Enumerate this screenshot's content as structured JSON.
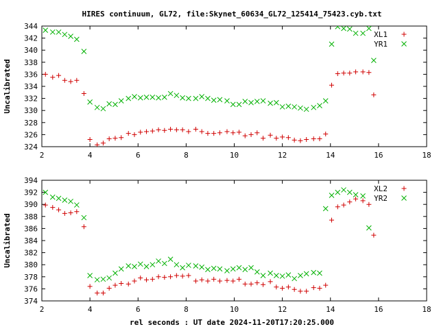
{
  "title": "HIRES continuum, GL72, file:Skynet_60634_GL72_125414_75423.cyb.txt",
  "xlabel": "rel seconds : UT date 2024-11-20T17:20:25.000",
  "colors": {
    "red": "#d00000",
    "green": "#00b000",
    "axis": "#000000"
  },
  "chart_data": [
    {
      "type": "scatter",
      "ylabel": "Uncalibrated",
      "xlim": [
        2,
        18
      ],
      "ylim": [
        324,
        344
      ],
      "xticks": [
        2,
        4,
        6,
        8,
        10,
        12,
        14,
        16,
        18
      ],
      "yticks": [
        324,
        326,
        328,
        330,
        332,
        334,
        336,
        338,
        340,
        342,
        344
      ],
      "legend_position": "top-right",
      "series": [
        {
          "name": "XL1",
          "marker": "plus",
          "color": "#d00000",
          "points": [
            [
              2.15,
              336.0
            ],
            [
              2.45,
              335.5
            ],
            [
              2.7,
              335.8
            ],
            [
              2.95,
              335.0
            ],
            [
              3.2,
              334.8
            ],
            [
              3.45,
              335.0
            ],
            [
              3.75,
              332.8
            ],
            [
              4.0,
              325.2
            ],
            [
              4.3,
              324.3
            ],
            [
              4.55,
              324.6
            ],
            [
              4.8,
              325.3
            ],
            [
              5.05,
              325.4
            ],
            [
              5.3,
              325.5
            ],
            [
              5.6,
              326.2
            ],
            [
              5.85,
              326.0
            ],
            [
              6.1,
              326.4
            ],
            [
              6.35,
              326.5
            ],
            [
              6.6,
              326.6
            ],
            [
              6.85,
              326.8
            ],
            [
              7.1,
              326.7
            ],
            [
              7.35,
              326.9
            ],
            [
              7.6,
              326.8
            ],
            [
              7.85,
              326.8
            ],
            [
              8.1,
              326.5
            ],
            [
              8.4,
              326.9
            ],
            [
              8.65,
              326.5
            ],
            [
              8.9,
              326.2
            ],
            [
              9.15,
              326.2
            ],
            [
              9.4,
              326.3
            ],
            [
              9.7,
              326.5
            ],
            [
              9.95,
              326.3
            ],
            [
              10.2,
              326.4
            ],
            [
              10.45,
              325.8
            ],
            [
              10.7,
              326.0
            ],
            [
              10.95,
              326.3
            ],
            [
              11.2,
              325.4
            ],
            [
              11.5,
              325.9
            ],
            [
              11.75,
              325.4
            ],
            [
              12.0,
              325.6
            ],
            [
              12.25,
              325.5
            ],
            [
              12.5,
              325.1
            ],
            [
              12.75,
              325.0
            ],
            [
              13.0,
              325.2
            ],
            [
              13.3,
              325.3
            ],
            [
              13.55,
              325.3
            ],
            [
              13.8,
              326.1
            ],
            [
              14.05,
              334.2
            ],
            [
              14.3,
              336.1
            ],
            [
              14.55,
              336.2
            ],
            [
              14.8,
              336.2
            ],
            [
              15.05,
              336.4
            ],
            [
              15.35,
              336.4
            ],
            [
              15.6,
              336.3
            ],
            [
              15.8,
              332.6
            ]
          ]
        },
        {
          "name": "YR1",
          "marker": "cross",
          "color": "#00b000",
          "points": [
            [
              2.15,
              343.3
            ],
            [
              2.45,
              343.0
            ],
            [
              2.7,
              343.0
            ],
            [
              2.95,
              342.6
            ],
            [
              3.2,
              342.3
            ],
            [
              3.45,
              341.8
            ],
            [
              3.75,
              339.8
            ],
            [
              4.0,
              331.4
            ],
            [
              4.3,
              330.5
            ],
            [
              4.55,
              330.3
            ],
            [
              4.8,
              331.1
            ],
            [
              5.05,
              331.0
            ],
            [
              5.3,
              331.6
            ],
            [
              5.6,
              332.0
            ],
            [
              5.85,
              332.3
            ],
            [
              6.1,
              332.1
            ],
            [
              6.35,
              332.2
            ],
            [
              6.6,
              332.2
            ],
            [
              6.85,
              332.1
            ],
            [
              7.1,
              332.2
            ],
            [
              7.35,
              332.8
            ],
            [
              7.6,
              332.5
            ],
            [
              7.85,
              332.1
            ],
            [
              8.1,
              332.0
            ],
            [
              8.4,
              332.0
            ],
            [
              8.65,
              332.3
            ],
            [
              8.9,
              332.0
            ],
            [
              9.15,
              331.7
            ],
            [
              9.4,
              331.8
            ],
            [
              9.7,
              331.6
            ],
            [
              9.95,
              331.0
            ],
            [
              10.2,
              331.0
            ],
            [
              10.45,
              331.5
            ],
            [
              10.7,
              331.3
            ],
            [
              10.95,
              331.5
            ],
            [
              11.2,
              331.6
            ],
            [
              11.5,
              331.2
            ],
            [
              11.75,
              331.3
            ],
            [
              12.0,
              330.6
            ],
            [
              12.25,
              330.7
            ],
            [
              12.5,
              330.6
            ],
            [
              12.75,
              330.4
            ],
            [
              13.0,
              330.2
            ],
            [
              13.3,
              330.5
            ],
            [
              13.55,
              330.8
            ],
            [
              13.8,
              331.6
            ],
            [
              14.05,
              341.0
            ],
            [
              14.3,
              343.9
            ],
            [
              14.55,
              343.6
            ],
            [
              14.8,
              343.5
            ],
            [
              15.05,
              342.8
            ],
            [
              15.35,
              342.8
            ],
            [
              15.6,
              343.6
            ],
            [
              15.8,
              338.3
            ]
          ]
        }
      ]
    },
    {
      "type": "scatter",
      "ylabel": "Uncalibrated",
      "xlim": [
        2,
        18
      ],
      "ylim": [
        374,
        394
      ],
      "xticks": [
        2,
        4,
        6,
        8,
        10,
        12,
        14,
        16,
        18
      ],
      "yticks": [
        374,
        376,
        378,
        380,
        382,
        384,
        386,
        388,
        390,
        392,
        394
      ],
      "legend_position": "top-right",
      "series": [
        {
          "name": "XL2",
          "marker": "plus",
          "color": "#d00000",
          "points": [
            [
              2.15,
              389.9
            ],
            [
              2.45,
              389.5
            ],
            [
              2.7,
              389.1
            ],
            [
              2.95,
              388.5
            ],
            [
              3.2,
              388.6
            ],
            [
              3.45,
              388.8
            ],
            [
              3.75,
              386.3
            ],
            [
              4.0,
              376.4
            ],
            [
              4.3,
              375.3
            ],
            [
              4.55,
              375.3
            ],
            [
              4.8,
              376.1
            ],
            [
              5.05,
              376.6
            ],
            [
              5.3,
              376.9
            ],
            [
              5.6,
              376.8
            ],
            [
              5.85,
              377.3
            ],
            [
              6.1,
              377.8
            ],
            [
              6.35,
              377.5
            ],
            [
              6.6,
              377.6
            ],
            [
              6.85,
              378.0
            ],
            [
              7.1,
              377.9
            ],
            [
              7.35,
              378.0
            ],
            [
              7.6,
              378.2
            ],
            [
              7.85,
              378.1
            ],
            [
              8.1,
              378.2
            ],
            [
              8.4,
              377.3
            ],
            [
              8.65,
              377.5
            ],
            [
              8.9,
              377.3
            ],
            [
              9.15,
              377.6
            ],
            [
              9.4,
              377.3
            ],
            [
              9.7,
              377.4
            ],
            [
              9.95,
              377.3
            ],
            [
              10.2,
              377.6
            ],
            [
              10.45,
              376.8
            ],
            [
              10.7,
              376.8
            ],
            [
              10.95,
              377.0
            ],
            [
              11.2,
              376.7
            ],
            [
              11.5,
              377.2
            ],
            [
              11.75,
              376.3
            ],
            [
              12.0,
              376.1
            ],
            [
              12.25,
              376.3
            ],
            [
              12.5,
              375.9
            ],
            [
              12.75,
              375.6
            ],
            [
              13.0,
              375.6
            ],
            [
              13.3,
              376.2
            ],
            [
              13.55,
              376.1
            ],
            [
              13.8,
              376.6
            ],
            [
              14.05,
              387.4
            ],
            [
              14.3,
              389.6
            ],
            [
              14.55,
              389.9
            ],
            [
              14.8,
              390.4
            ],
            [
              15.05,
              390.9
            ],
            [
              15.35,
              390.6
            ],
            [
              15.6,
              390.0
            ],
            [
              15.8,
              384.9
            ]
          ]
        },
        {
          "name": "YR2",
          "marker": "cross",
          "color": "#00b000",
          "points": [
            [
              2.15,
              392.0
            ],
            [
              2.45,
              391.2
            ],
            [
              2.7,
              391.0
            ],
            [
              2.95,
              390.7
            ],
            [
              3.2,
              390.5
            ],
            [
              3.45,
              389.9
            ],
            [
              3.75,
              387.8
            ],
            [
              4.0,
              378.2
            ],
            [
              4.3,
              377.5
            ],
            [
              4.55,
              377.6
            ],
            [
              4.8,
              377.8
            ],
            [
              5.05,
              378.6
            ],
            [
              5.3,
              379.3
            ],
            [
              5.6,
              379.8
            ],
            [
              5.85,
              379.7
            ],
            [
              6.1,
              380.1
            ],
            [
              6.35,
              379.7
            ],
            [
              6.6,
              380.0
            ],
            [
              6.85,
              380.6
            ],
            [
              7.1,
              380.2
            ],
            [
              7.35,
              380.9
            ],
            [
              7.6,
              380.0
            ],
            [
              7.85,
              379.5
            ],
            [
              8.1,
              379.9
            ],
            [
              8.4,
              379.8
            ],
            [
              8.65,
              379.6
            ],
            [
              8.9,
              379.2
            ],
            [
              9.15,
              379.4
            ],
            [
              9.4,
              379.3
            ],
            [
              9.7,
              379.0
            ],
            [
              9.95,
              379.3
            ],
            [
              10.2,
              379.5
            ],
            [
              10.45,
              379.2
            ],
            [
              10.7,
              379.5
            ],
            [
              10.95,
              378.8
            ],
            [
              11.2,
              378.2
            ],
            [
              11.5,
              378.6
            ],
            [
              11.75,
              378.2
            ],
            [
              12.0,
              378.1
            ],
            [
              12.25,
              378.3
            ],
            [
              12.5,
              377.7
            ],
            [
              12.75,
              378.2
            ],
            [
              13.0,
              378.5
            ],
            [
              13.3,
              378.7
            ],
            [
              13.55,
              378.6
            ],
            [
              13.8,
              389.3
            ],
            [
              14.05,
              391.5
            ],
            [
              14.3,
              392.0
            ],
            [
              14.55,
              392.4
            ],
            [
              14.8,
              392.0
            ],
            [
              15.05,
              391.6
            ],
            [
              15.35,
              391.4
            ],
            [
              15.6,
              386.1
            ]
          ]
        }
      ]
    }
  ]
}
